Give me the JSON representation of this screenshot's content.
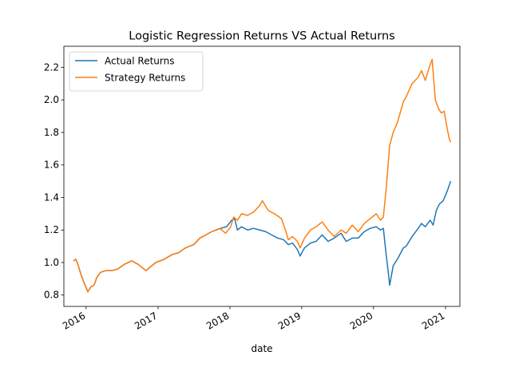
{
  "chart_data": {
    "type": "line",
    "title": "Logistic Regression Returns VS Actual Returns",
    "xlabel": "date",
    "ylabel": "",
    "ylim": [
      0.73,
      2.33
    ],
    "xlim": [
      "2015-09-10",
      "2021-03-15"
    ],
    "yticks": [
      0.8,
      1.0,
      1.2,
      1.4,
      1.6,
      1.8,
      2.0,
      2.2
    ],
    "ytick_labels": [
      "0.8",
      "1.0",
      "1.2",
      "1.4",
      "1.6",
      "1.8",
      "2.0",
      "2.2"
    ],
    "xticks": [
      "2016-01-01",
      "2017-01-01",
      "2018-01-01",
      "2019-01-01",
      "2020-01-01",
      "2021-01-01"
    ],
    "xtick_labels": [
      "2016",
      "2017",
      "2018",
      "2019",
      "2020",
      "2021"
    ],
    "grid": false,
    "legend_position": "upper-left",
    "series": [
      {
        "name": "Actual Returns",
        "color": "#1f77b4",
        "points": [
          [
            "2015-10-28",
            1.01
          ],
          [
            "2015-11-10",
            1.02
          ],
          [
            "2015-11-20",
            0.99
          ],
          [
            "2015-12-05",
            0.93
          ],
          [
            "2015-12-20",
            0.88
          ],
          [
            "2016-01-10",
            0.82
          ],
          [
            "2016-01-25",
            0.85
          ],
          [
            "2016-02-10",
            0.86
          ],
          [
            "2016-02-25",
            0.91
          ],
          [
            "2016-03-15",
            0.94
          ],
          [
            "2016-04-10",
            0.95
          ],
          [
            "2016-05-10",
            0.95
          ],
          [
            "2016-06-10",
            0.96
          ],
          [
            "2016-07-15",
            0.99
          ],
          [
            "2016-08-20",
            1.01
          ],
          [
            "2016-09-20",
            0.99
          ],
          [
            "2016-11-01",
            0.95
          ],
          [
            "2016-11-20",
            0.97
          ],
          [
            "2016-12-20",
            1.0
          ],
          [
            "2017-02-01",
            1.02
          ],
          [
            "2017-03-15",
            1.05
          ],
          [
            "2017-04-15",
            1.06
          ],
          [
            "2017-05-20",
            1.09
          ],
          [
            "2017-07-01",
            1.11
          ],
          [
            "2017-08-01",
            1.15
          ],
          [
            "2017-09-01",
            1.17
          ],
          [
            "2017-10-01",
            1.19
          ],
          [
            "2017-11-15",
            1.21
          ],
          [
            "2017-12-15",
            1.22
          ],
          [
            "2018-01-10",
            1.26
          ],
          [
            "2018-01-25",
            1.27
          ],
          [
            "2018-02-08",
            1.2
          ],
          [
            "2018-03-01",
            1.22
          ],
          [
            "2018-04-01",
            1.2
          ],
          [
            "2018-05-01",
            1.21
          ],
          [
            "2018-06-01",
            1.2
          ],
          [
            "2018-07-01",
            1.19
          ],
          [
            "2018-08-01",
            1.17
          ],
          [
            "2018-09-01",
            1.15
          ],
          [
            "2018-10-01",
            1.14
          ],
          [
            "2018-10-25",
            1.11
          ],
          [
            "2018-11-15",
            1.12
          ],
          [
            "2018-12-10",
            1.08
          ],
          [
            "2018-12-24",
            1.04
          ],
          [
            "2019-01-15",
            1.09
          ],
          [
            "2019-02-15",
            1.12
          ],
          [
            "2019-03-15",
            1.13
          ],
          [
            "2019-04-15",
            1.17
          ],
          [
            "2019-05-15",
            1.13
          ],
          [
            "2019-06-15",
            1.15
          ],
          [
            "2019-07-20",
            1.18
          ],
          [
            "2019-08-15",
            1.13
          ],
          [
            "2019-09-15",
            1.15
          ],
          [
            "2019-10-15",
            1.15
          ],
          [
            "2019-11-15",
            1.19
          ],
          [
            "2019-12-15",
            1.21
          ],
          [
            "2020-01-15",
            1.22
          ],
          [
            "2020-02-05",
            1.2
          ],
          [
            "2020-02-20",
            1.21
          ],
          [
            "2020-03-05",
            1.05
          ],
          [
            "2020-03-15",
            0.95
          ],
          [
            "2020-03-23",
            0.86
          ],
          [
            "2020-04-10",
            0.98
          ],
          [
            "2020-05-01",
            1.02
          ],
          [
            "2020-06-01",
            1.09
          ],
          [
            "2020-06-15",
            1.1
          ],
          [
            "2020-07-15",
            1.16
          ],
          [
            "2020-08-15",
            1.21
          ],
          [
            "2020-09-01",
            1.24
          ],
          [
            "2020-09-20",
            1.22
          ],
          [
            "2020-10-15",
            1.26
          ],
          [
            "2020-10-30",
            1.23
          ],
          [
            "2020-11-15",
            1.32
          ],
          [
            "2020-12-01",
            1.36
          ],
          [
            "2020-12-20",
            1.38
          ],
          [
            "2021-01-10",
            1.44
          ],
          [
            "2021-01-27",
            1.5
          ]
        ]
      },
      {
        "name": "Strategy Returns",
        "color": "#ff7f0e",
        "points": [
          [
            "2015-10-28",
            1.01
          ],
          [
            "2015-11-10",
            1.02
          ],
          [
            "2015-11-20",
            0.99
          ],
          [
            "2015-12-05",
            0.93
          ],
          [
            "2015-12-20",
            0.88
          ],
          [
            "2016-01-10",
            0.82
          ],
          [
            "2016-01-25",
            0.85
          ],
          [
            "2016-02-10",
            0.86
          ],
          [
            "2016-02-25",
            0.91
          ],
          [
            "2016-03-15",
            0.94
          ],
          [
            "2016-04-10",
            0.95
          ],
          [
            "2016-05-10",
            0.95
          ],
          [
            "2016-06-10",
            0.96
          ],
          [
            "2016-07-15",
            0.99
          ],
          [
            "2016-08-20",
            1.01
          ],
          [
            "2016-09-20",
            0.99
          ],
          [
            "2016-11-01",
            0.95
          ],
          [
            "2016-11-20",
            0.97
          ],
          [
            "2016-12-20",
            1.0
          ],
          [
            "2017-02-01",
            1.02
          ],
          [
            "2017-03-15",
            1.05
          ],
          [
            "2017-04-15",
            1.06
          ],
          [
            "2017-05-20",
            1.09
          ],
          [
            "2017-07-01",
            1.11
          ],
          [
            "2017-08-01",
            1.15
          ],
          [
            "2017-09-01",
            1.17
          ],
          [
            "2017-10-01",
            1.19
          ],
          [
            "2017-11-10",
            1.21
          ],
          [
            "2017-12-10",
            1.18
          ],
          [
            "2018-01-05",
            1.22
          ],
          [
            "2018-01-20",
            1.28
          ],
          [
            "2018-02-08",
            1.26
          ],
          [
            "2018-03-01",
            1.3
          ],
          [
            "2018-04-01",
            1.29
          ],
          [
            "2018-05-01",
            1.31
          ],
          [
            "2018-06-01",
            1.35
          ],
          [
            "2018-06-15",
            1.38
          ],
          [
            "2018-07-15",
            1.32
          ],
          [
            "2018-08-15",
            1.3
          ],
          [
            "2018-09-20",
            1.27
          ],
          [
            "2018-10-10",
            1.2
          ],
          [
            "2018-10-25",
            1.14
          ],
          [
            "2018-11-15",
            1.16
          ],
          [
            "2018-12-10",
            1.13
          ],
          [
            "2018-12-24",
            1.09
          ],
          [
            "2019-01-15",
            1.15
          ],
          [
            "2019-02-15",
            1.2
          ],
          [
            "2019-03-15",
            1.22
          ],
          [
            "2019-04-15",
            1.25
          ],
          [
            "2019-05-15",
            1.2
          ],
          [
            "2019-06-15",
            1.16
          ],
          [
            "2019-07-20",
            1.2
          ],
          [
            "2019-08-15",
            1.18
          ],
          [
            "2019-09-15",
            1.23
          ],
          [
            "2019-10-15",
            1.19
          ],
          [
            "2019-11-15",
            1.24
          ],
          [
            "2019-12-15",
            1.27
          ],
          [
            "2020-01-15",
            1.3
          ],
          [
            "2020-02-05",
            1.26
          ],
          [
            "2020-02-20",
            1.28
          ],
          [
            "2020-03-05",
            1.45
          ],
          [
            "2020-03-15",
            1.6
          ],
          [
            "2020-03-23",
            1.72
          ],
          [
            "2020-04-10",
            1.8
          ],
          [
            "2020-05-01",
            1.86
          ],
          [
            "2020-06-01",
            1.99
          ],
          [
            "2020-06-15",
            2.02
          ],
          [
            "2020-07-15",
            2.1
          ],
          [
            "2020-08-15",
            2.14
          ],
          [
            "2020-09-01",
            2.18
          ],
          [
            "2020-09-20",
            2.12
          ],
          [
            "2020-10-10",
            2.2
          ],
          [
            "2020-10-25",
            2.25
          ],
          [
            "2020-11-10",
            2.0
          ],
          [
            "2020-11-25",
            1.95
          ],
          [
            "2020-12-10",
            1.92
          ],
          [
            "2020-12-25",
            1.93
          ],
          [
            "2021-01-10",
            1.82
          ],
          [
            "2021-01-20",
            1.76
          ],
          [
            "2021-01-27",
            1.74
          ]
        ]
      }
    ]
  }
}
